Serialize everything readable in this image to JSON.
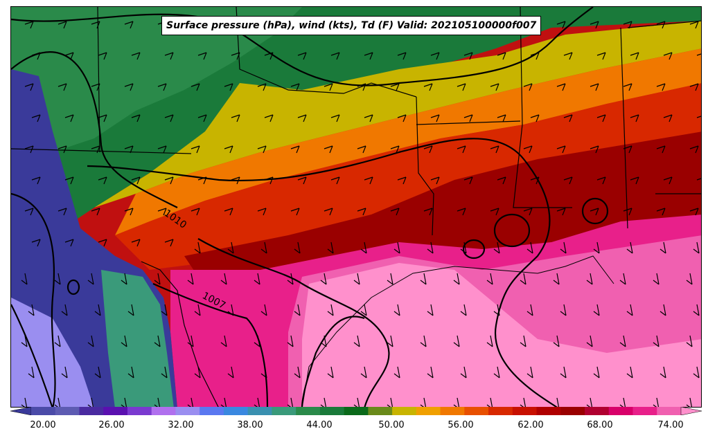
{
  "title": "Surface pressure (hPa), wind (kts), Td (F) Valid: 202105100000f007",
  "colorbar": {
    "tick_labels": [
      "20.00",
      "26.00",
      "32.00",
      "38.00",
      "44.00",
      "50.00",
      "56.00",
      "62.00",
      "68.00",
      "74.00"
    ],
    "colors": [
      "#3a3a9a",
      "#4b4ba8",
      "#5d5bb2",
      "#4a2aa0",
      "#5a10b0",
      "#7a3ad0",
      "#b070ee",
      "#9a8ef0",
      "#5a78f0",
      "#3a88e0",
      "#3a90b0",
      "#3a9a7a",
      "#2a8a4a",
      "#1a7a3a",
      "#0a6a1a",
      "#6a8a1a",
      "#c8b400",
      "#f0a000",
      "#f07800",
      "#e85000",
      "#d82800",
      "#c81000",
      "#b00000",
      "#9a0000",
      "#b00030",
      "#d8006a",
      "#e8208a",
      "#f060b0",
      "#ff90cc"
    ]
  },
  "contour_labels": [
    "1010",
    "1007"
  ]
}
